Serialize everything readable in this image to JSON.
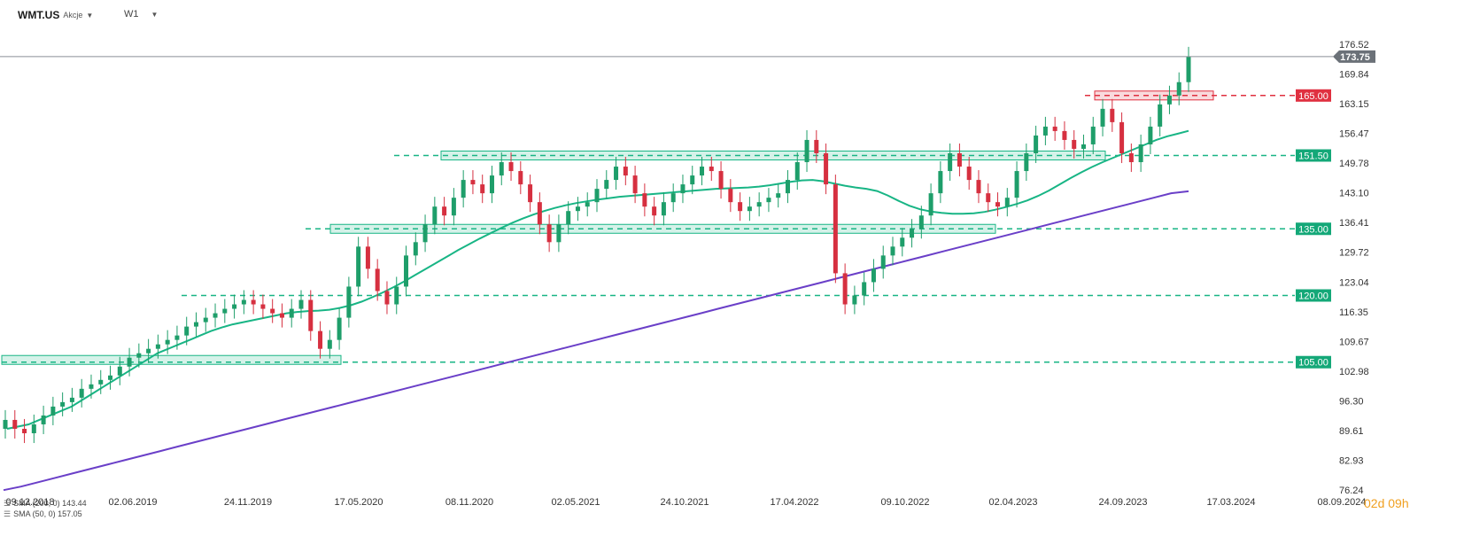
{
  "header": {
    "symbol": "WMT.US",
    "instrument_type": "Akcje",
    "timeframe": "W1"
  },
  "legend": {
    "sma200": "SMA (200, 0) 143.44",
    "sma50": "SMA (50, 0) 157.05"
  },
  "countdown": "02d 09h",
  "colors": {
    "up_candle": "#1e9e6a",
    "down_candle": "#d63040",
    "sma50": "#18b585",
    "sma200": "#6a3fc8",
    "level": "#18b585",
    "resistance": "#e03040",
    "price_line": "#8a8f96",
    "price_tag_bg": "#6b7178"
  },
  "chart_data": {
    "type": "candlestick",
    "y_ticks": [
      "176.52",
      "169.84",
      "163.15",
      "156.47",
      "149.78",
      "143.10",
      "136.41",
      "129.72",
      "123.04",
      "116.35",
      "109.67",
      "102.98",
      "96.30",
      "89.61",
      "82.93",
      "76.24"
    ],
    "x_ticks": [
      "09.12.2018",
      "02.06.2019",
      "24.11.2019",
      "17.05.2020",
      "08.11.2020",
      "02.05.2021",
      "24.10.2021",
      "17.04.2022",
      "09.10.2022",
      "02.04.2023",
      "24.09.2023",
      "17.03.2024",
      "08.09.2024"
    ],
    "ylim": [
      76.24,
      176.52
    ],
    "current_price": "173.75",
    "horizontal_levels": [
      {
        "value": "165.00",
        "kind": "resistance"
      },
      {
        "value": "151.50",
        "kind": "support"
      },
      {
        "value": "135.00",
        "kind": "support"
      },
      {
        "value": "120.00",
        "kind": "support"
      },
      {
        "value": "105.00",
        "kind": "support"
      }
    ],
    "zones": [
      {
        "low": 104.5,
        "high": 106.5,
        "from": "09.12.2018",
        "to": "17.05.2020",
        "kind": "support"
      },
      {
        "low": 134.0,
        "high": 136.0,
        "from": "17.05.2020",
        "to": "02.04.2023",
        "kind": "support"
      },
      {
        "low": 150.5,
        "high": 152.5,
        "from": "08.11.2020",
        "to": "24.09.2023",
        "kind": "support"
      },
      {
        "low": 164.0,
        "high": 166.0,
        "from": "24.09.2023",
        "to": "17.03.2024",
        "kind": "resistance"
      }
    ],
    "candles_close": [
      92,
      90,
      89,
      91,
      93,
      95,
      96,
      97,
      99,
      100,
      101,
      102,
      104,
      106,
      107,
      108,
      109,
      110,
      111,
      113,
      114,
      115,
      116,
      117,
      118,
      119,
      118,
      117,
      116,
      115,
      117,
      119,
      112,
      108,
      110,
      115,
      122,
      131,
      126,
      121,
      118,
      122,
      129,
      132,
      136,
      140,
      138,
      142,
      146,
      145,
      143,
      147,
      150,
      148,
      145,
      141,
      136,
      132,
      136,
      139,
      140,
      141,
      144,
      146,
      149,
      147,
      143,
      140,
      138,
      141,
      143,
      145,
      147,
      149,
      148,
      144,
      141,
      139,
      140,
      141,
      142,
      143,
      146,
      150,
      155,
      152,
      145,
      125,
      118,
      120,
      123,
      126,
      129,
      131,
      133,
      135,
      138,
      143,
      148,
      152,
      149,
      146,
      143,
      141,
      140,
      142,
      148,
      152,
      156,
      158,
      157,
      155,
      153,
      154,
      158,
      162,
      159,
      152,
      150,
      154,
      158,
      163,
      165,
      168,
      173.75
    ],
    "sma50": [
      90,
      90.5,
      91,
      92,
      93,
      94,
      95,
      96.5,
      98,
      99.5,
      101,
      102.5,
      104,
      105.5,
      107,
      108,
      109,
      110,
      111,
      112,
      112.8,
      113.5,
      114,
      114.5,
      115,
      115.5,
      116,
      116.3,
      116.5,
      116.6,
      116.8,
      117.2,
      117.8,
      118.6,
      119.6,
      120.7,
      121.9,
      123.2,
      124.6,
      126,
      127.4,
      128.8,
      130.2,
      131.5,
      132.8,
      134,
      135.2,
      136.3,
      137.3,
      138.2,
      139,
      139.7,
      140.3,
      140.8,
      141.2,
      141.6,
      141.9,
      142.2,
      142.4,
      142.6,
      142.8,
      143,
      143.2,
      143.4,
      143.6,
      143.8,
      144,
      144.1,
      144.2,
      144.3,
      144.5,
      144.8,
      145.2,
      145.6,
      145.9,
      146,
      145.7,
      145.2,
      144.7,
      144.3,
      144,
      143.5,
      142.5,
      141.3,
      140.2,
      139.4,
      138.9,
      138.6,
      138.4,
      138.4,
      138.5,
      138.8,
      139.3,
      139.9,
      140.6,
      141.4,
      142.4,
      143.6,
      145,
      146.4,
      147.7,
      148.9,
      150,
      151,
      152,
      153,
      154,
      155,
      155.8,
      156.4,
      157.05
    ],
    "sma200": [
      76.2,
      77,
      78,
      79,
      80,
      81,
      82,
      83,
      84,
      85,
      86,
      87,
      88,
      89,
      90,
      91,
      92,
      93,
      94,
      95,
      96,
      97,
      98,
      99,
      100,
      101,
      102,
      103,
      104,
      105,
      106,
      107,
      108,
      109,
      110,
      111,
      112,
      113,
      114,
      115,
      116,
      117,
      118,
      119,
      120,
      121,
      122,
      123,
      124,
      125,
      126,
      127,
      128,
      129,
      130,
      131,
      132,
      133,
      134,
      135,
      136,
      137,
      138,
      139,
      140,
      141,
      142,
      143,
      143.44
    ]
  }
}
